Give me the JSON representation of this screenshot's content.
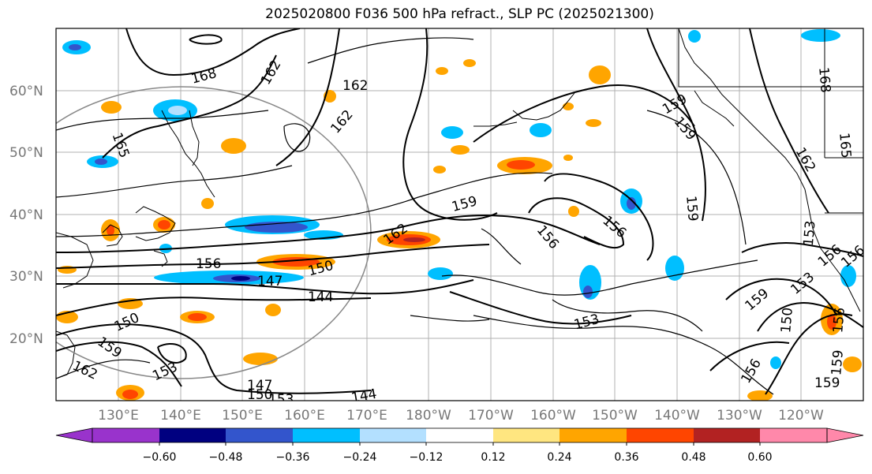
{
  "title": "2025020800 F036 500 hPa refract., SLP PC (2025021300)",
  "lat_labels": [
    "60°N",
    "50°N",
    "40°N",
    "30°N",
    "20°N"
  ],
  "lon_labels": [
    "130°E",
    "140°E",
    "150°E",
    "160°E",
    "170°E",
    "180°W",
    "170°W",
    "160°W",
    "150°W",
    "140°W",
    "130°W",
    "120°W"
  ],
  "colorbar": {
    "tick_labels": [
      "−0.60",
      "−0.48",
      "−0.36",
      "−0.24",
      "−0.12",
      "0.12",
      "0.24",
      "0.36",
      "0.48",
      "0.60"
    ],
    "colors": [
      "#9933cc",
      "#000080",
      "#3355cc",
      "#00bfff",
      "#b3e0ff",
      "#ffffff",
      "#ffe680",
      "#ffa500",
      "#ff4500",
      "#b22222",
      "#ff88aa"
    ]
  },
  "contour_labels": [
    "168",
    "162",
    "165",
    "162",
    "159",
    "159",
    "159",
    "162",
    "162",
    "165",
    "168",
    "159",
    "162",
    "156",
    "156",
    "159",
    "153",
    "156",
    "156",
    "150",
    "147",
    "144",
    "150",
    "159",
    "162",
    "153",
    "147",
    "150",
    "153",
    "144",
    "153",
    "150",
    "156",
    "153",
    "159",
    "159",
    "156",
    "156"
  ]
}
